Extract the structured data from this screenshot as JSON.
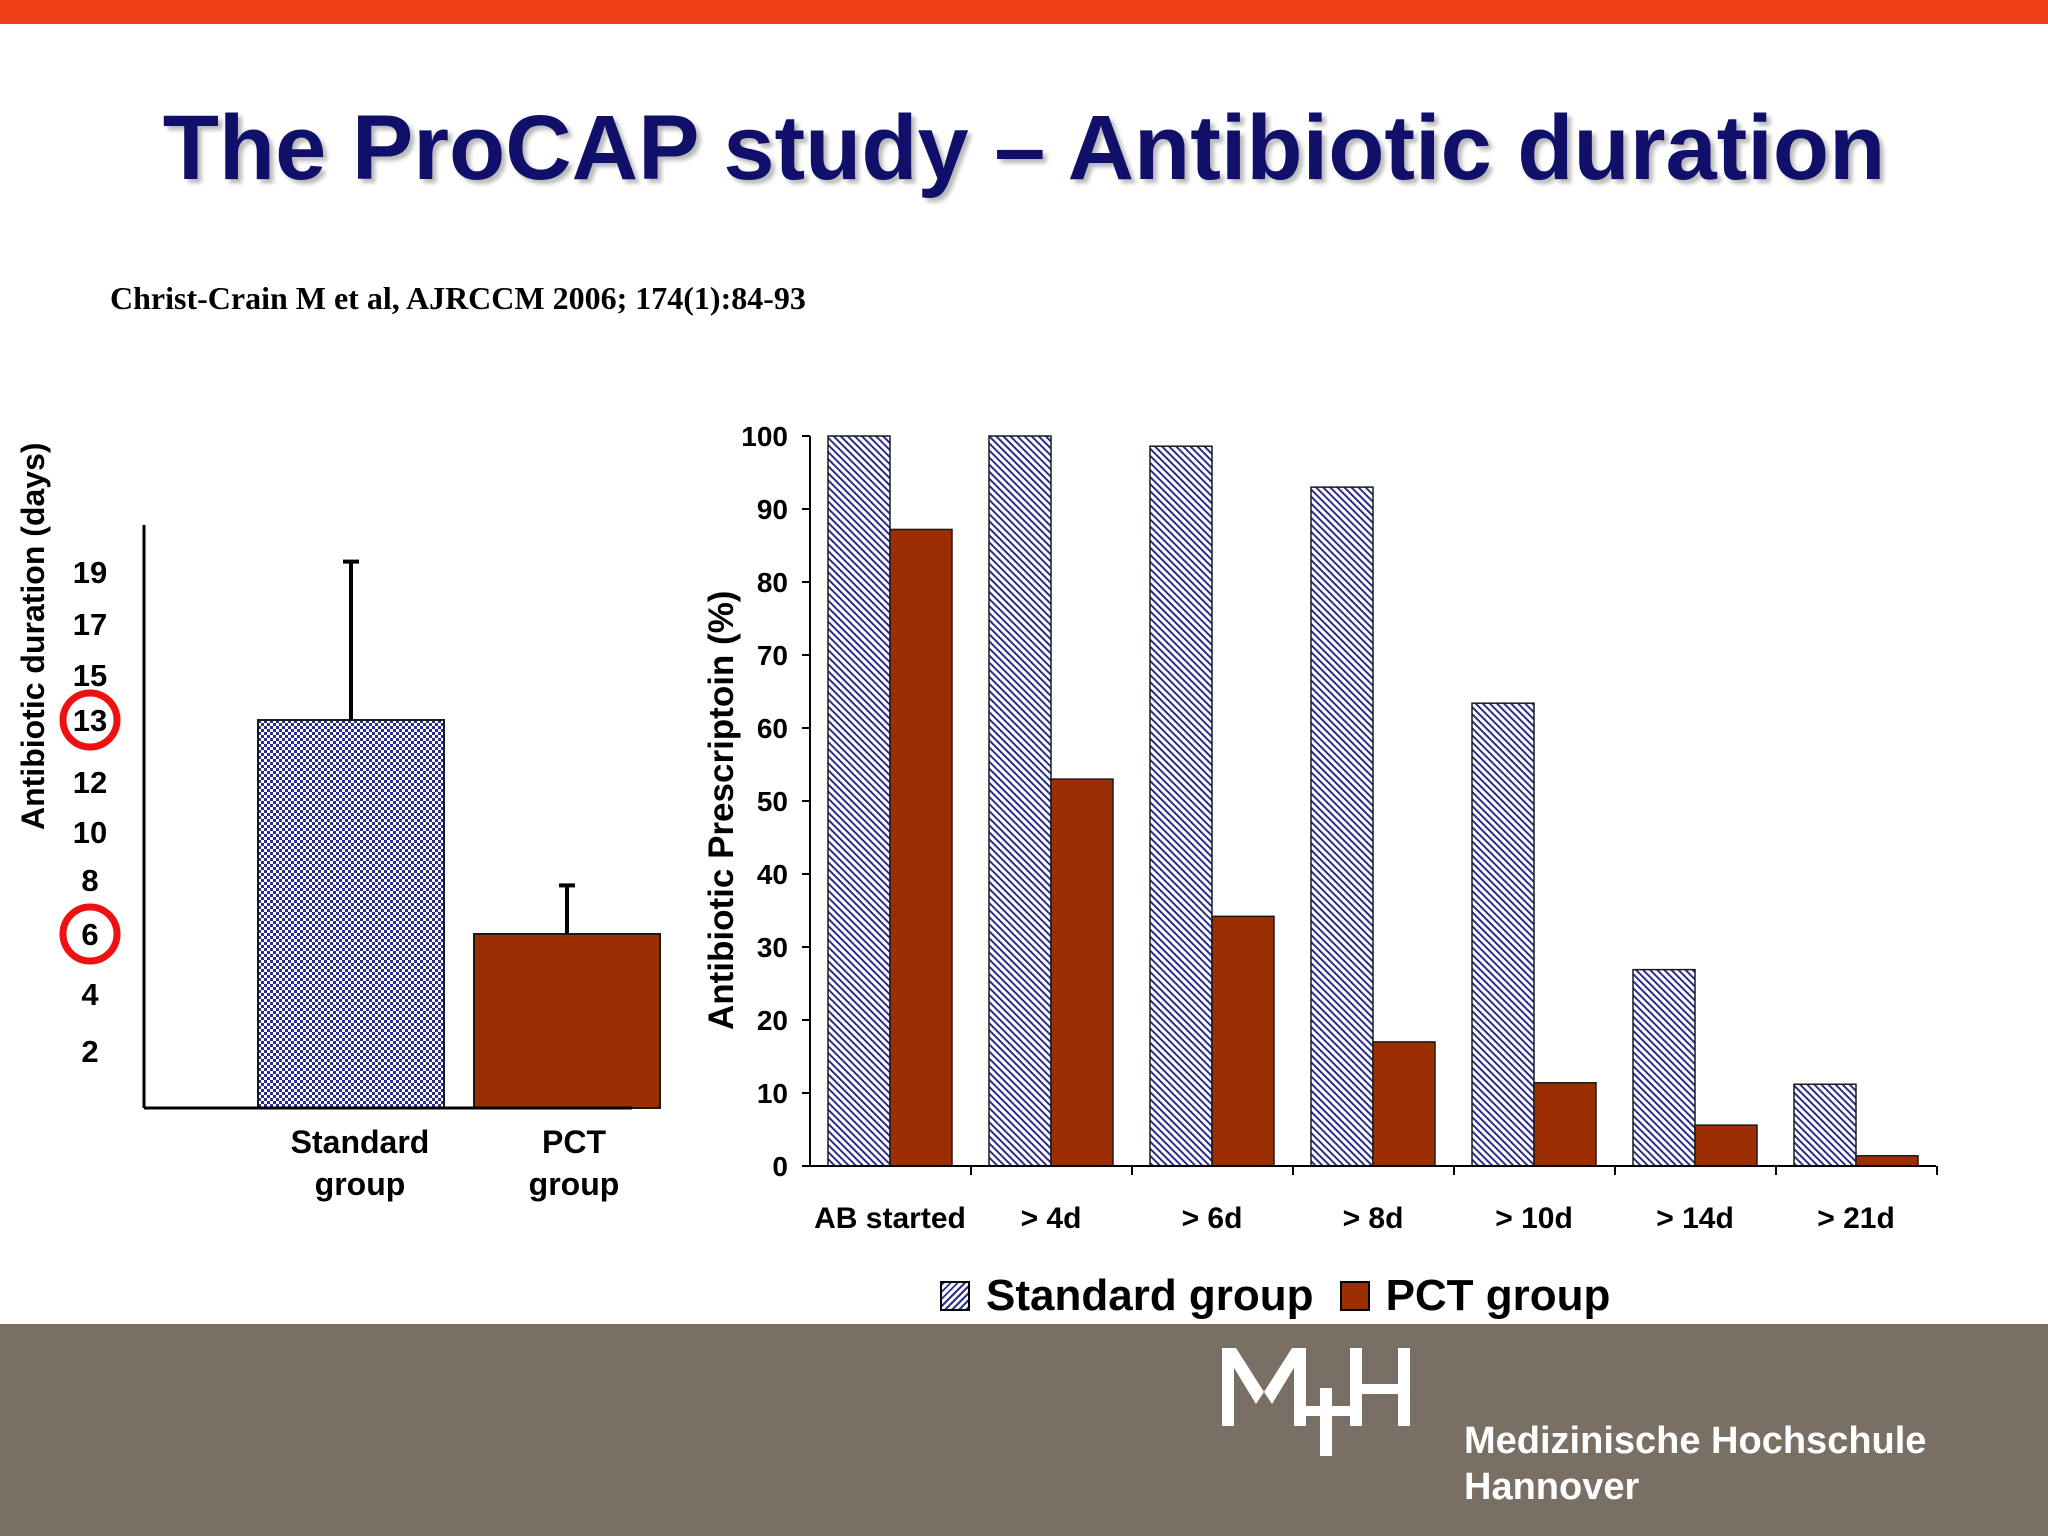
{
  "slide": {
    "title": "The ProCAP study – Antibiotic duration",
    "citation": "Christ-Crain M et al, AJRCCM 2006; 174(1):84-93",
    "logo": {
      "mark": "MHH",
      "line1": "Medizinische Hochschule",
      "line2": "Hannover"
    }
  },
  "colors": {
    "accent_bar": "#ee3f19",
    "title": "#10106a",
    "standard": "#2b2f8a",
    "pct": "#9b2f02",
    "highlight_circle": "#ee1111",
    "footer": "#7a6f64"
  },
  "chart_data": [
    {
      "type": "bar",
      "ylabel": "Antibiotic duration (days)",
      "xlabel": "",
      "ylim": [
        0,
        20
      ],
      "yticks": [
        2,
        4,
        6,
        8,
        10,
        12,
        13,
        15,
        17,
        19
      ],
      "highlighted_ticks": [
        13,
        6
      ],
      "categories": [
        "Standard group",
        "PCT group"
      ],
      "category_lines": [
        [
          "Standard",
          "group"
        ],
        [
          "PCT",
          "group"
        ]
      ],
      "values": [
        13,
        6
      ],
      "error_upper": [
        19.4,
        7.8
      ],
      "bar_colors": [
        "#2b2f8a",
        "#9b2f02"
      ],
      "bar_fills": [
        "pattern-checker",
        "solid"
      ]
    },
    {
      "type": "bar",
      "ylabel": "Antibiotic Prescriptoin (%)",
      "xlabel": "",
      "ylim": [
        0,
        100
      ],
      "yticks": [
        0,
        10,
        20,
        30,
        40,
        50,
        60,
        70,
        80,
        90,
        100
      ],
      "categories": [
        "AB started",
        "> 4d",
        "> 6d",
        "> 8d",
        "> 10d",
        "> 14d",
        "> 21d"
      ],
      "series": [
        {
          "name": "Standard group",
          "values": [
            100,
            100,
            98.6,
            93,
            63.4,
            26.9,
            11.2
          ]
        },
        {
          "name": "PCT group",
          "values": [
            87.2,
            53,
            34.2,
            17,
            11.4,
            5.6,
            1.4
          ]
        }
      ],
      "legend": "bottom-center",
      "grid": false
    }
  ]
}
